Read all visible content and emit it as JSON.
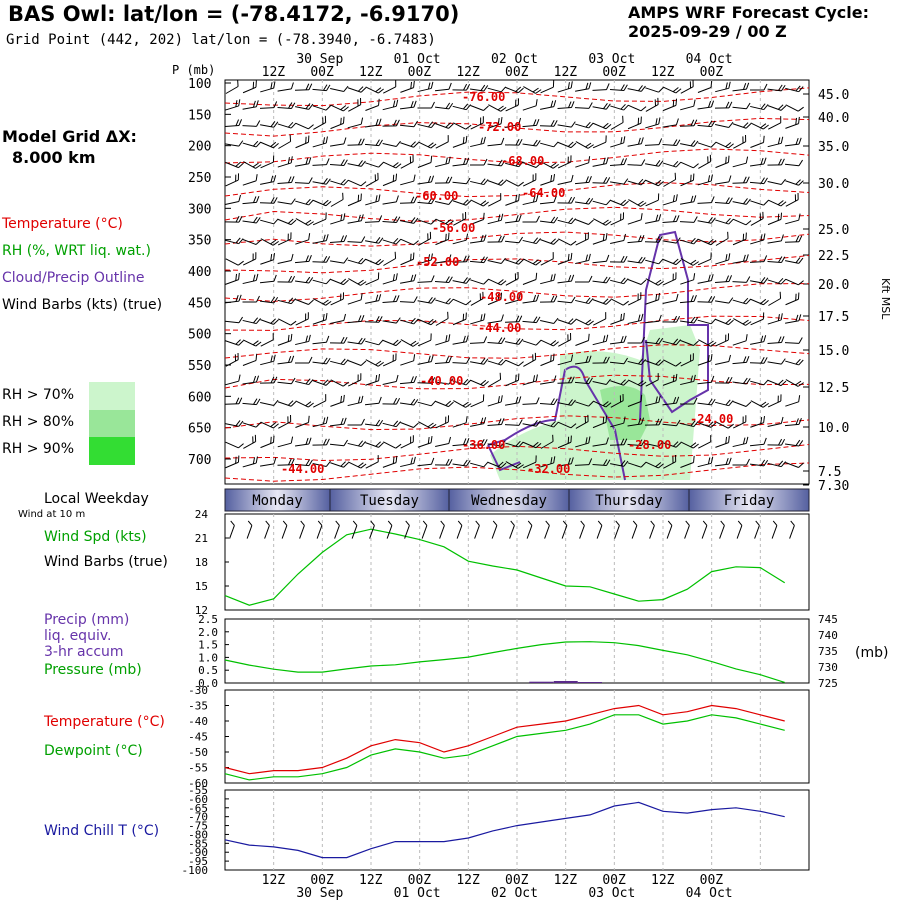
{
  "header": {
    "title": "BAS Owl:  lat/lon = (-78.4172, -6.9170)",
    "subtitle": "Grid Point (442, 202) lat/lon = (-78.3940, -6.7483)",
    "cycle_line1": "AMPS WRF Forecast Cycle:",
    "cycle_line2": "2025-09-29 / 00  Z"
  },
  "model_grid": {
    "label": "Model Grid ΔX:",
    "value": "8.000 km"
  },
  "legend": {
    "temperature": "Temperature (°C)",
    "rh": "RH (%, WRT liq. wat.)",
    "cloud": "Cloud/Precip Outline",
    "wind": "Wind Barbs (kts) (true)",
    "rh70": "RH > 70%",
    "rh80": "RH > 80%",
    "rh90": "RH > 90%"
  },
  "colors": {
    "temperature": "#e00000",
    "rh": "#00a000",
    "cloud": "#6633aa",
    "wind_chill": "#1a1aa0",
    "precip": "#5a2a8a",
    "rh70": "#ccf5cc",
    "rh80": "#99e699",
    "rh90": "#33dd33",
    "weekday_band": "#5560a0"
  },
  "time_axis": {
    "top_labels": [
      "12Z",
      "00Z",
      "12Z",
      "00Z",
      "12Z",
      "00Z",
      "12Z",
      "00Z",
      "12Z",
      "00Z"
    ],
    "date_labels": [
      "30 Sep",
      "01 Oct",
      "02 Oct",
      "03 Oct",
      "04 Oct"
    ],
    "bottom_labels": [
      "12Z",
      "00Z",
      "12Z",
      "00Z",
      "12Z",
      "00Z",
      "12Z",
      "00Z",
      "12Z",
      "00Z"
    ]
  },
  "weekday": {
    "title": "Local Weekday",
    "subtitle": "Wind at 10 m",
    "days": [
      "Monday",
      "Tuesday",
      "Wednesday",
      "Thursday",
      "Friday"
    ]
  },
  "cross_section": {
    "ylabel": "P (mb)",
    "right_label": "Kft MSL",
    "pressure_ticks": [
      "100",
      "150",
      "200",
      "250",
      "300",
      "350",
      "400",
      "450",
      "500",
      "550",
      "600",
      "650",
      "700"
    ],
    "height_ticks": [
      "45.0",
      "40.0",
      "35.0",
      "30.0",
      "25.0",
      "22.5",
      "20.0",
      "17.5",
      "15.0",
      "12.5",
      "10.0",
      "7.5",
      "7.30"
    ],
    "temp_labels": [
      "-76.00",
      "-72.00",
      "-68.00",
      "-64.00",
      "-60.00",
      "-56.00",
      "-52.00",
      "-48.00",
      "-44.00",
      "-40.00",
      "-36.00",
      "-32.00",
      "-28.00",
      "-24.00",
      "-44.00"
    ]
  },
  "panels": {
    "wind_label": "Wind Spd (kts)",
    "wind_barb_label": "Wind Barbs (true)",
    "precip_label1": "Precip (mm)",
    "precip_label2": "liq. equiv.",
    "precip_label3": "3-hr accum",
    "pressure_label": "Pressure (mb)",
    "pressure_unit": "(mb)",
    "temp_label": "Temperature (°C)",
    "dew_label": "Dewpoint (°C)",
    "chill_label": "Wind Chill T (°C)"
  },
  "chart_data": [
    {
      "type": "line",
      "title": "Wind Spd (kts)",
      "x_hours": [
        0,
        6,
        12,
        18,
        24,
        30,
        36,
        42,
        48,
        54,
        60,
        66,
        72,
        78,
        84,
        90,
        96,
        102,
        108,
        114,
        120,
        126,
        132,
        138
      ],
      "series": [
        {
          "name": "Wind Spd (kts)",
          "values": [
            13.8,
            12.6,
            13.4,
            16.5,
            19.2,
            21.4,
            22.1,
            21.5,
            20.8,
            19.9,
            18.1,
            17.5,
            17.0,
            16.0,
            15.0,
            14.9,
            14.0,
            13.1,
            13.3,
            14.6,
            16.8,
            17.4,
            17.3,
            15.4
          ]
        }
      ],
      "ylim": [
        12,
        24
      ],
      "yticks": [
        "12",
        "15",
        "18",
        "21",
        "24"
      ]
    },
    {
      "type": "line",
      "title": "Pressure (mb) / Precip (mm)",
      "x_hours": [
        0,
        6,
        12,
        18,
        24,
        30,
        36,
        42,
        48,
        54,
        60,
        66,
        72,
        78,
        84,
        90,
        96,
        102,
        108,
        114,
        120,
        126,
        132,
        138
      ],
      "series": [
        {
          "name": "Pressure (mb)",
          "values": [
            732.2,
            730.6,
            729.3,
            728.4,
            728.4,
            729.4,
            730.3,
            730.7,
            731.6,
            732.3,
            733.1,
            734.5,
            735.8,
            737.0,
            737.8,
            737.9,
            737.6,
            736.7,
            735.2,
            733.8,
            731.7,
            729.4,
            727.6,
            725.2
          ]
        },
        {
          "name": "Precip (mm)",
          "values": [
            0,
            0,
            0,
            0,
            0,
            0,
            0,
            0,
            0,
            0,
            0,
            0,
            0,
            0.05,
            0.08,
            0.04,
            0,
            0,
            0,
            0,
            0,
            0,
            0,
            0
          ]
        }
      ],
      "ylim_precip": [
        0,
        2.5
      ],
      "ylim_pressure": [
        725,
        745
      ],
      "yticks_left": [
        "0.0",
        "0.5",
        "1.0",
        "1.5",
        "2.0",
        "2.5"
      ],
      "yticks_right": [
        "725",
        "730",
        "735",
        "740",
        "745"
      ]
    },
    {
      "type": "line",
      "title": "Temperature / Dewpoint (°C)",
      "x_hours": [
        0,
        6,
        12,
        18,
        24,
        30,
        36,
        42,
        48,
        54,
        60,
        66,
        72,
        78,
        84,
        90,
        96,
        102,
        108,
        114,
        120,
        126,
        132,
        138
      ],
      "series": [
        {
          "name": "Temperature (°C)",
          "values": [
            -55,
            -57,
            -56,
            -56,
            -55,
            -52,
            -48,
            -46,
            -47,
            -50,
            -48,
            -45,
            -42,
            -41,
            -40,
            -38,
            -36,
            -35,
            -38,
            -37,
            -35,
            -36,
            -38,
            -40
          ]
        },
        {
          "name": "Dewpoint (°C)",
          "values": [
            -57,
            -59,
            -58,
            -58,
            -57,
            -55,
            -51,
            -49,
            -50,
            -52,
            -51,
            -48,
            -45,
            -44,
            -43,
            -41,
            -38,
            -38,
            -41,
            -40,
            -38,
            -39,
            -41,
            -43
          ]
        }
      ],
      "ylim": [
        -60,
        -30
      ],
      "yticks": [
        "-60",
        "-55",
        "-50",
        "-45",
        "-40",
        "-35",
        "-30"
      ]
    },
    {
      "type": "line",
      "title": "Wind Chill T (°C)",
      "x_hours": [
        0,
        6,
        12,
        18,
        24,
        30,
        36,
        42,
        48,
        54,
        60,
        66,
        72,
        78,
        84,
        90,
        96,
        102,
        108,
        114,
        120,
        126,
        132,
        138
      ],
      "series": [
        {
          "name": "Wind Chill T (°C)",
          "values": [
            -83,
            -86,
            -87,
            -89,
            -93,
            -93,
            -88,
            -84,
            -84,
            -84,
            -82,
            -78,
            -75,
            -73,
            -71,
            -69,
            -64,
            -62,
            -67,
            -68,
            -66,
            -65,
            -67,
            -70
          ]
        }
      ],
      "ylim": [
        -100,
        -55
      ],
      "yticks": [
        "-100",
        "-95",
        "-90",
        "-85",
        "-80",
        "-75",
        "-70",
        "-65",
        "-60",
        "-55"
      ]
    }
  ]
}
